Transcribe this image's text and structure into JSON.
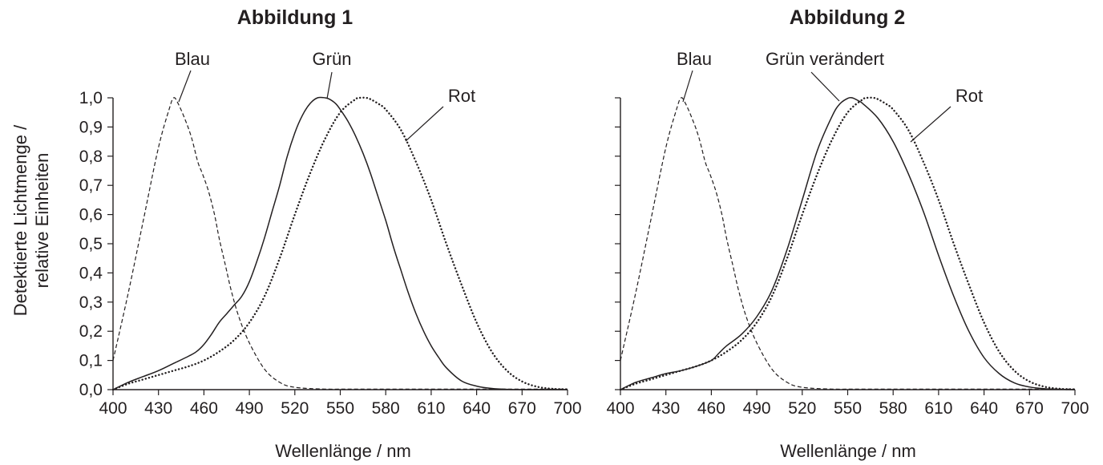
{
  "chart_data": [
    {
      "type": "line",
      "title": "Abbildung 1",
      "xlabel": "Wellenlänge / nm",
      "ylabel": [
        "Detektierte Lichtmenge /",
        "relative Einheiten"
      ],
      "xlim": [
        400,
        700
      ],
      "ylim": [
        0,
        1
      ],
      "x_ticks": [
        "400",
        "430",
        "460",
        "490",
        "520",
        "550",
        "580",
        "610",
        "640",
        "670",
        "700"
      ],
      "y_ticks": [
        "0,0",
        "0,1",
        "0,2",
        "0,3",
        "0,4",
        "0,5",
        "0,6",
        "0,7",
        "0,8",
        "0,9",
        "1,0"
      ],
      "grid": false,
      "legend": "none",
      "series": [
        {
          "name": "Blau",
          "style": "dashed",
          "x": [
            400,
            410,
            420,
            430,
            437,
            440,
            443,
            448,
            452,
            456,
            459,
            463,
            467,
            470,
            474,
            478,
            483,
            490,
            500,
            510,
            520,
            540,
            560,
            600,
            650,
            700
          ],
          "y": [
            0.1,
            0.33,
            0.58,
            0.83,
            0.96,
            1.0,
            0.98,
            0.92,
            0.86,
            0.78,
            0.74,
            0.68,
            0.6,
            0.52,
            0.43,
            0.34,
            0.25,
            0.16,
            0.07,
            0.025,
            0.008,
            0.002,
            0.002,
            0.002,
            0.002,
            0.002
          ]
        },
        {
          "name": "Grün",
          "style": "solid",
          "x": [
            400,
            410,
            420,
            430,
            440,
            450,
            455,
            460,
            465,
            470,
            475,
            480,
            485,
            490,
            495,
            500,
            505,
            510,
            515,
            520,
            525,
            530,
            535,
            540,
            543,
            547,
            550,
            555,
            560,
            565,
            570,
            575,
            580,
            585,
            590,
            595,
            600,
            605,
            610,
            615,
            620,
            630,
            640,
            650,
            660,
            670,
            680,
            700
          ],
          "y": [
            0.0,
            0.025,
            0.045,
            0.065,
            0.09,
            0.115,
            0.13,
            0.155,
            0.19,
            0.23,
            0.26,
            0.29,
            0.32,
            0.37,
            0.44,
            0.52,
            0.61,
            0.7,
            0.8,
            0.88,
            0.94,
            0.98,
            1.0,
            1.0,
            0.995,
            0.98,
            0.96,
            0.92,
            0.87,
            0.81,
            0.74,
            0.66,
            0.58,
            0.49,
            0.41,
            0.33,
            0.26,
            0.2,
            0.15,
            0.11,
            0.075,
            0.03,
            0.012,
            0.004,
            0.001,
            0.0,
            0.0,
            0.0
          ]
        },
        {
          "name": "Rot",
          "style": "dotted",
          "x": [
            400,
            410,
            420,
            430,
            440,
            450,
            460,
            470,
            480,
            490,
            500,
            510,
            520,
            530,
            540,
            550,
            560,
            563,
            567,
            570,
            575,
            580,
            590,
            600,
            610,
            620,
            630,
            640,
            650,
            660,
            670,
            680,
            690,
            700
          ],
          "y": [
            0.0,
            0.02,
            0.035,
            0.05,
            0.065,
            0.08,
            0.1,
            0.13,
            0.17,
            0.23,
            0.32,
            0.45,
            0.6,
            0.74,
            0.86,
            0.95,
            0.995,
            1.0,
            1.0,
            0.995,
            0.98,
            0.96,
            0.89,
            0.78,
            0.65,
            0.5,
            0.36,
            0.23,
            0.13,
            0.065,
            0.028,
            0.01,
            0.003,
            0.001
          ]
        }
      ],
      "annotations": [
        "Blau",
        "Grün",
        "Rot"
      ]
    },
    {
      "type": "line",
      "title": "Abbildung 2",
      "xlabel": "Wellenlänge / nm",
      "xlim": [
        400,
        700
      ],
      "ylim": [
        0,
        1
      ],
      "x_ticks": [
        "400",
        "430",
        "460",
        "490",
        "520",
        "550",
        "580",
        "610",
        "640",
        "670",
        "700"
      ],
      "grid": false,
      "legend": "none",
      "series": [
        {
          "name": "Blau",
          "style": "dashed",
          "x": [
            400,
            410,
            420,
            430,
            437,
            440,
            443,
            448,
            452,
            456,
            459,
            463,
            467,
            470,
            474,
            478,
            483,
            490,
            500,
            510,
            520,
            540,
            560,
            600,
            650,
            700
          ],
          "y": [
            0.1,
            0.33,
            0.58,
            0.83,
            0.96,
            1.0,
            0.98,
            0.92,
            0.86,
            0.78,
            0.74,
            0.68,
            0.6,
            0.52,
            0.43,
            0.34,
            0.25,
            0.16,
            0.07,
            0.025,
            0.008,
            0.002,
            0.002,
            0.002,
            0.002,
            0.002
          ]
        },
        {
          "name": "Grün verändert",
          "style": "solid",
          "x": [
            400,
            410,
            420,
            430,
            440,
            450,
            460,
            465,
            470,
            480,
            490,
            500,
            510,
            520,
            530,
            540,
            545,
            550,
            553,
            557,
            560,
            570,
            580,
            590,
            600,
            610,
            620,
            630,
            640,
            650,
            660,
            670,
            680,
            690,
            700
          ],
          "y": [
            0.0,
            0.025,
            0.04,
            0.055,
            0.065,
            0.08,
            0.1,
            0.125,
            0.15,
            0.19,
            0.25,
            0.34,
            0.48,
            0.65,
            0.82,
            0.94,
            0.98,
            0.998,
            1.0,
            0.99,
            0.98,
            0.93,
            0.85,
            0.74,
            0.61,
            0.46,
            0.32,
            0.2,
            0.11,
            0.055,
            0.023,
            0.009,
            0.003,
            0.001,
            0.0
          ]
        },
        {
          "name": "Rot",
          "style": "dotted",
          "x": [
            400,
            410,
            420,
            430,
            440,
            450,
            460,
            470,
            480,
            490,
            500,
            510,
            520,
            530,
            540,
            550,
            560,
            563,
            567,
            570,
            575,
            580,
            590,
            600,
            610,
            620,
            630,
            640,
            650,
            660,
            670,
            680,
            690,
            700
          ],
          "y": [
            0.0,
            0.02,
            0.035,
            0.05,
            0.065,
            0.08,
            0.1,
            0.13,
            0.17,
            0.23,
            0.32,
            0.45,
            0.6,
            0.74,
            0.86,
            0.95,
            0.995,
            1.0,
            1.0,
            0.995,
            0.98,
            0.96,
            0.89,
            0.78,
            0.65,
            0.5,
            0.36,
            0.23,
            0.13,
            0.065,
            0.028,
            0.01,
            0.003,
            0.001
          ]
        }
      ],
      "annotations": [
        "Blau",
        "Grün verändert",
        "Rot"
      ]
    }
  ]
}
